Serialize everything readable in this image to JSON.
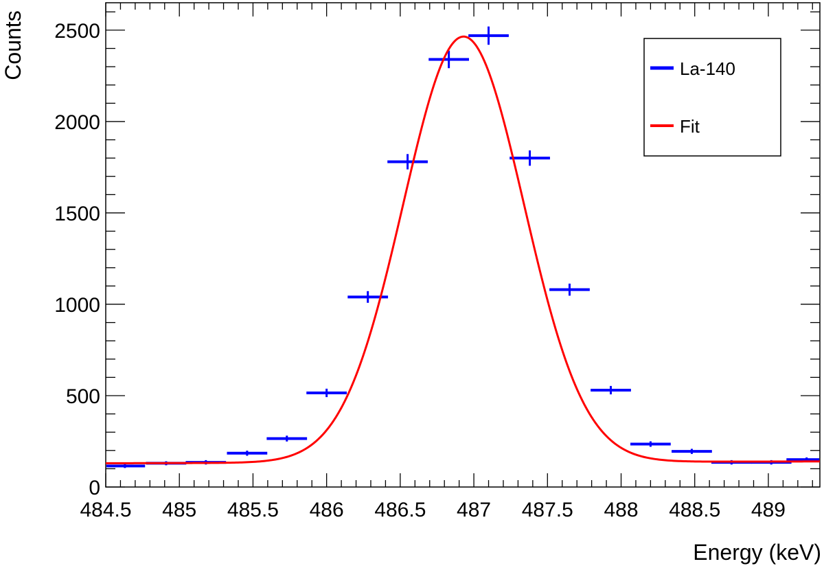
{
  "chart_data": {
    "type": "scatter",
    "xlabel": "Energy (keV)",
    "ylabel": "Counts",
    "xlim": [
      484.5,
      489.35
    ],
    "ylim": [
      0,
      2650
    ],
    "xticks": [
      "484.5",
      "485",
      "485.5",
      "486",
      "486.5",
      "487",
      "487.5",
      "488",
      "488.5",
      "489"
    ],
    "xtick_values": [
      484.5,
      485,
      485.5,
      486,
      486.5,
      487,
      487.5,
      488,
      488.5,
      489
    ],
    "yticks": [
      "0",
      "500",
      "1000",
      "1500",
      "2000",
      "2500"
    ],
    "ytick_values": [
      0,
      500,
      1000,
      1500,
      2000,
      2500
    ],
    "grid": false,
    "legend_position": "top-right",
    "series": [
      {
        "name": "La-140",
        "kind": "histogram-points",
        "color": "#0000ff",
        "bin_width": 0.274,
        "x": [
          484.63,
          484.91,
          485.18,
          485.46,
          485.73,
          486.0,
          486.28,
          486.55,
          486.83,
          487.1,
          487.38,
          487.65,
          487.93,
          488.2,
          488.48,
          488.75,
          489.02,
          489.26
        ],
        "y": [
          115,
          130,
          135,
          185,
          265,
          515,
          1040,
          1780,
          2340,
          2470,
          1800,
          1080,
          530,
          235,
          195,
          135,
          135,
          150
        ],
        "err": [
          11,
          11,
          12,
          14,
          16,
          23,
          32,
          42,
          48,
          50,
          42,
          33,
          23,
          15,
          14,
          12,
          12,
          12
        ]
      },
      {
        "name": "Fit",
        "kind": "gaussian",
        "color": "#ff0000",
        "amplitude": 2330,
        "mean": 486.93,
        "sigma": 0.41,
        "baseline_left": 130,
        "baseline_right": 140
      }
    ]
  }
}
